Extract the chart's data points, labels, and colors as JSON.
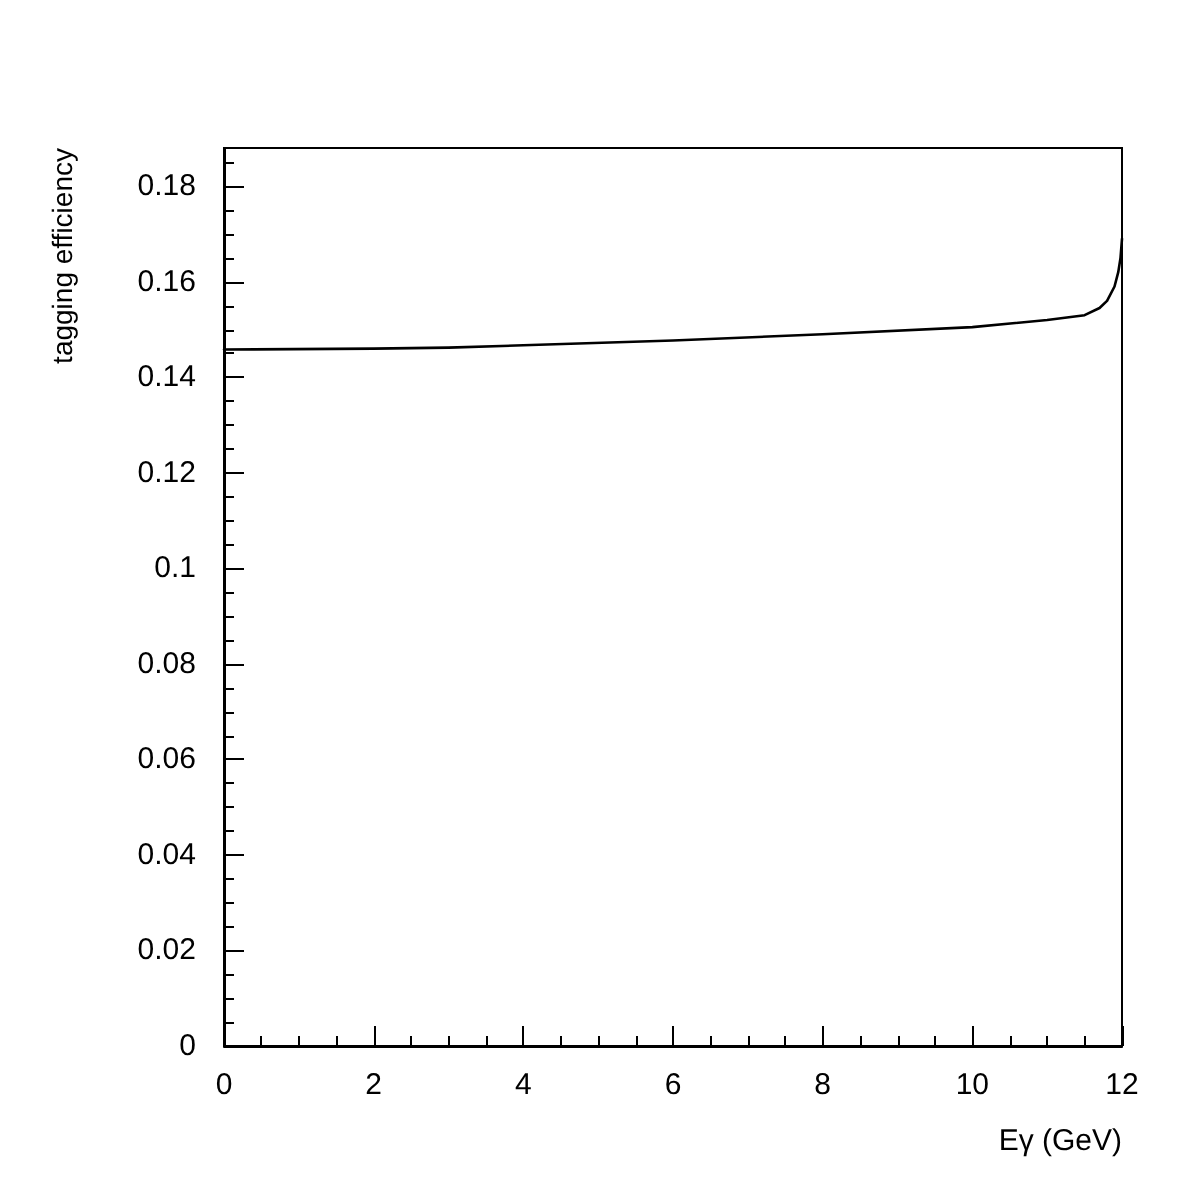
{
  "chart_data": {
    "type": "line",
    "xlabel": "Eγ (GeV)",
    "ylabel": "tagging efficiency",
    "x": [
      0,
      2,
      3,
      4,
      6,
      8,
      10,
      11,
      11.5,
      11.7,
      11.8,
      11.9,
      11.95,
      11.98,
      12
    ],
    "series": [
      {
        "color": "#000000",
        "values": [
          0.1458,
          0.146,
          0.1462,
          0.1467,
          0.1477,
          0.149,
          0.1505,
          0.152,
          0.153,
          0.1545,
          0.156,
          0.159,
          0.162,
          0.165,
          0.169
        ]
      }
    ],
    "xlim": [
      0,
      12
    ],
    "xticks": [
      0,
      2,
      4,
      6,
      8,
      10,
      12
    ],
    "ylim": [
      0,
      0.188
    ],
    "yticks": [
      0,
      0.02,
      0.04,
      0.06,
      0.08,
      0.1,
      0.12,
      0.14,
      0.16,
      0.18
    ],
    "marker": "none",
    "line_style": "solid"
  }
}
